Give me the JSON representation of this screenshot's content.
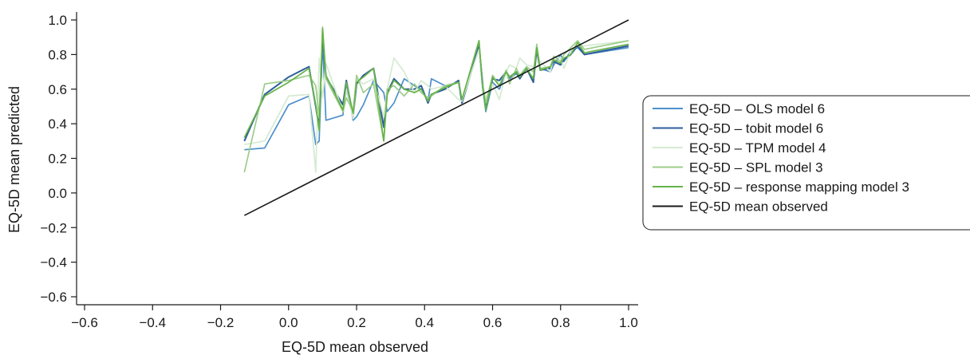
{
  "chart_data": {
    "type": "line",
    "xlabel": "EQ-5D mean observed",
    "ylabel": "EQ-5D mean predicted",
    "xlim": [
      -0.6,
      1.0
    ],
    "ylim": [
      -0.6,
      1.0
    ],
    "xticks": [
      -0.6,
      -0.4,
      -0.2,
      0.0,
      0.2,
      0.4,
      0.6,
      0.8,
      1.0
    ],
    "yticks": [
      -0.6,
      -0.4,
      -0.2,
      0.0,
      0.2,
      0.4,
      0.6,
      0.8,
      1.0
    ],
    "xtick_labels": [
      "−0.6",
      "−0.4",
      "−0.2",
      "0.0",
      "0.2",
      "0.4",
      "0.6",
      "0.8",
      "1.0"
    ],
    "ytick_labels": [
      "−0.6",
      "−0.4",
      "−0.2",
      "0.0",
      "0.2",
      "0.4",
      "0.6",
      "0.8",
      "1.0"
    ],
    "grid": false,
    "legend_position": "right",
    "x": [
      -0.13,
      -0.07,
      0.0,
      0.06,
      0.08,
      0.09,
      0.1,
      0.11,
      0.16,
      0.17,
      0.19,
      0.2,
      0.22,
      0.25,
      0.28,
      0.29,
      0.31,
      0.34,
      0.37,
      0.39,
      0.41,
      0.42,
      0.46,
      0.5,
      0.51,
      0.56,
      0.57,
      0.58,
      0.6,
      0.62,
      0.64,
      0.65,
      0.67,
      0.68,
      0.7,
      0.72,
      0.73,
      0.74,
      0.77,
      0.78,
      0.8,
      0.81,
      0.83,
      0.85,
      0.87,
      1.0
    ],
    "series": [
      {
        "name": "EQ-5D – OLS model 6",
        "color": "#4d8fcc",
        "values": [
          0.25,
          0.26,
          0.51,
          0.56,
          0.28,
          0.3,
          0.88,
          0.42,
          0.45,
          0.64,
          0.42,
          0.44,
          0.51,
          0.65,
          0.58,
          0.47,
          0.52,
          0.66,
          0.62,
          0.6,
          0.53,
          0.66,
          0.62,
          0.64,
          0.52,
          0.84,
          0.62,
          0.47,
          0.64,
          0.6,
          0.7,
          0.66,
          0.69,
          0.66,
          0.72,
          0.65,
          0.84,
          0.72,
          0.7,
          0.74,
          0.8,
          0.76,
          0.82,
          0.84,
          0.8,
          0.84
        ]
      },
      {
        "name": "EQ-5D – tobit model 6",
        "color": "#2e5d9a",
        "values": [
          0.3,
          0.57,
          0.67,
          0.73,
          0.5,
          0.38,
          0.91,
          0.67,
          0.51,
          0.65,
          0.44,
          0.63,
          0.68,
          0.72,
          0.38,
          0.58,
          0.66,
          0.6,
          0.6,
          0.62,
          0.52,
          0.57,
          0.6,
          0.65,
          0.52,
          0.85,
          0.65,
          0.5,
          0.66,
          0.65,
          0.7,
          0.67,
          0.7,
          0.66,
          0.72,
          0.64,
          0.83,
          0.71,
          0.72,
          0.76,
          0.74,
          0.77,
          0.8,
          0.85,
          0.8,
          0.85
        ]
      },
      {
        "name": "EQ-5D – TPM model 4",
        "color": "#d5ead2",
        "values": [
          0.28,
          0.3,
          0.56,
          0.57,
          0.12,
          0.78,
          0.55,
          0.75,
          0.47,
          0.59,
          0.43,
          0.66,
          0.63,
          0.66,
          0.44,
          0.6,
          0.78,
          0.7,
          0.58,
          0.65,
          0.62,
          0.6,
          0.62,
          0.54,
          0.53,
          0.83,
          0.64,
          0.55,
          0.63,
          0.54,
          0.7,
          0.74,
          0.72,
          0.78,
          0.74,
          0.73,
          0.73,
          0.76,
          0.7,
          0.79,
          0.78,
          0.72,
          0.82,
          0.85,
          0.85,
          0.88
        ]
      },
      {
        "name": "EQ-5D – SPL model 3",
        "color": "#9ccd8a",
        "values": [
          0.12,
          0.63,
          0.65,
          0.68,
          0.62,
          0.44,
          0.96,
          0.66,
          0.47,
          0.55,
          0.47,
          0.68,
          0.58,
          0.63,
          0.3,
          0.6,
          0.62,
          0.56,
          0.63,
          0.58,
          0.55,
          0.56,
          0.62,
          0.64,
          0.54,
          0.88,
          0.63,
          0.52,
          0.68,
          0.62,
          0.71,
          0.63,
          0.72,
          0.68,
          0.73,
          0.7,
          0.86,
          0.72,
          0.73,
          0.79,
          0.76,
          0.8,
          0.84,
          0.88,
          0.83,
          0.88
        ]
      },
      {
        "name": "EQ-5D – response mapping model 3",
        "color": "#66b348",
        "values": [
          0.32,
          0.56,
          0.64,
          0.72,
          0.51,
          0.36,
          0.95,
          0.68,
          0.48,
          0.64,
          0.46,
          0.64,
          0.67,
          0.72,
          0.3,
          0.57,
          0.65,
          0.6,
          0.58,
          0.6,
          0.53,
          0.57,
          0.61,
          0.64,
          0.54,
          0.88,
          0.63,
          0.48,
          0.67,
          0.62,
          0.7,
          0.67,
          0.7,
          0.67,
          0.72,
          0.66,
          0.84,
          0.71,
          0.73,
          0.77,
          0.75,
          0.78,
          0.8,
          0.87,
          0.81,
          0.86
        ]
      }
    ],
    "reference_line": {
      "name": "EQ-5D mean observed",
      "color": "#1a1a1a",
      "x": [
        -0.13,
        1.0
      ],
      "y": [
        -0.13,
        1.0
      ]
    }
  }
}
